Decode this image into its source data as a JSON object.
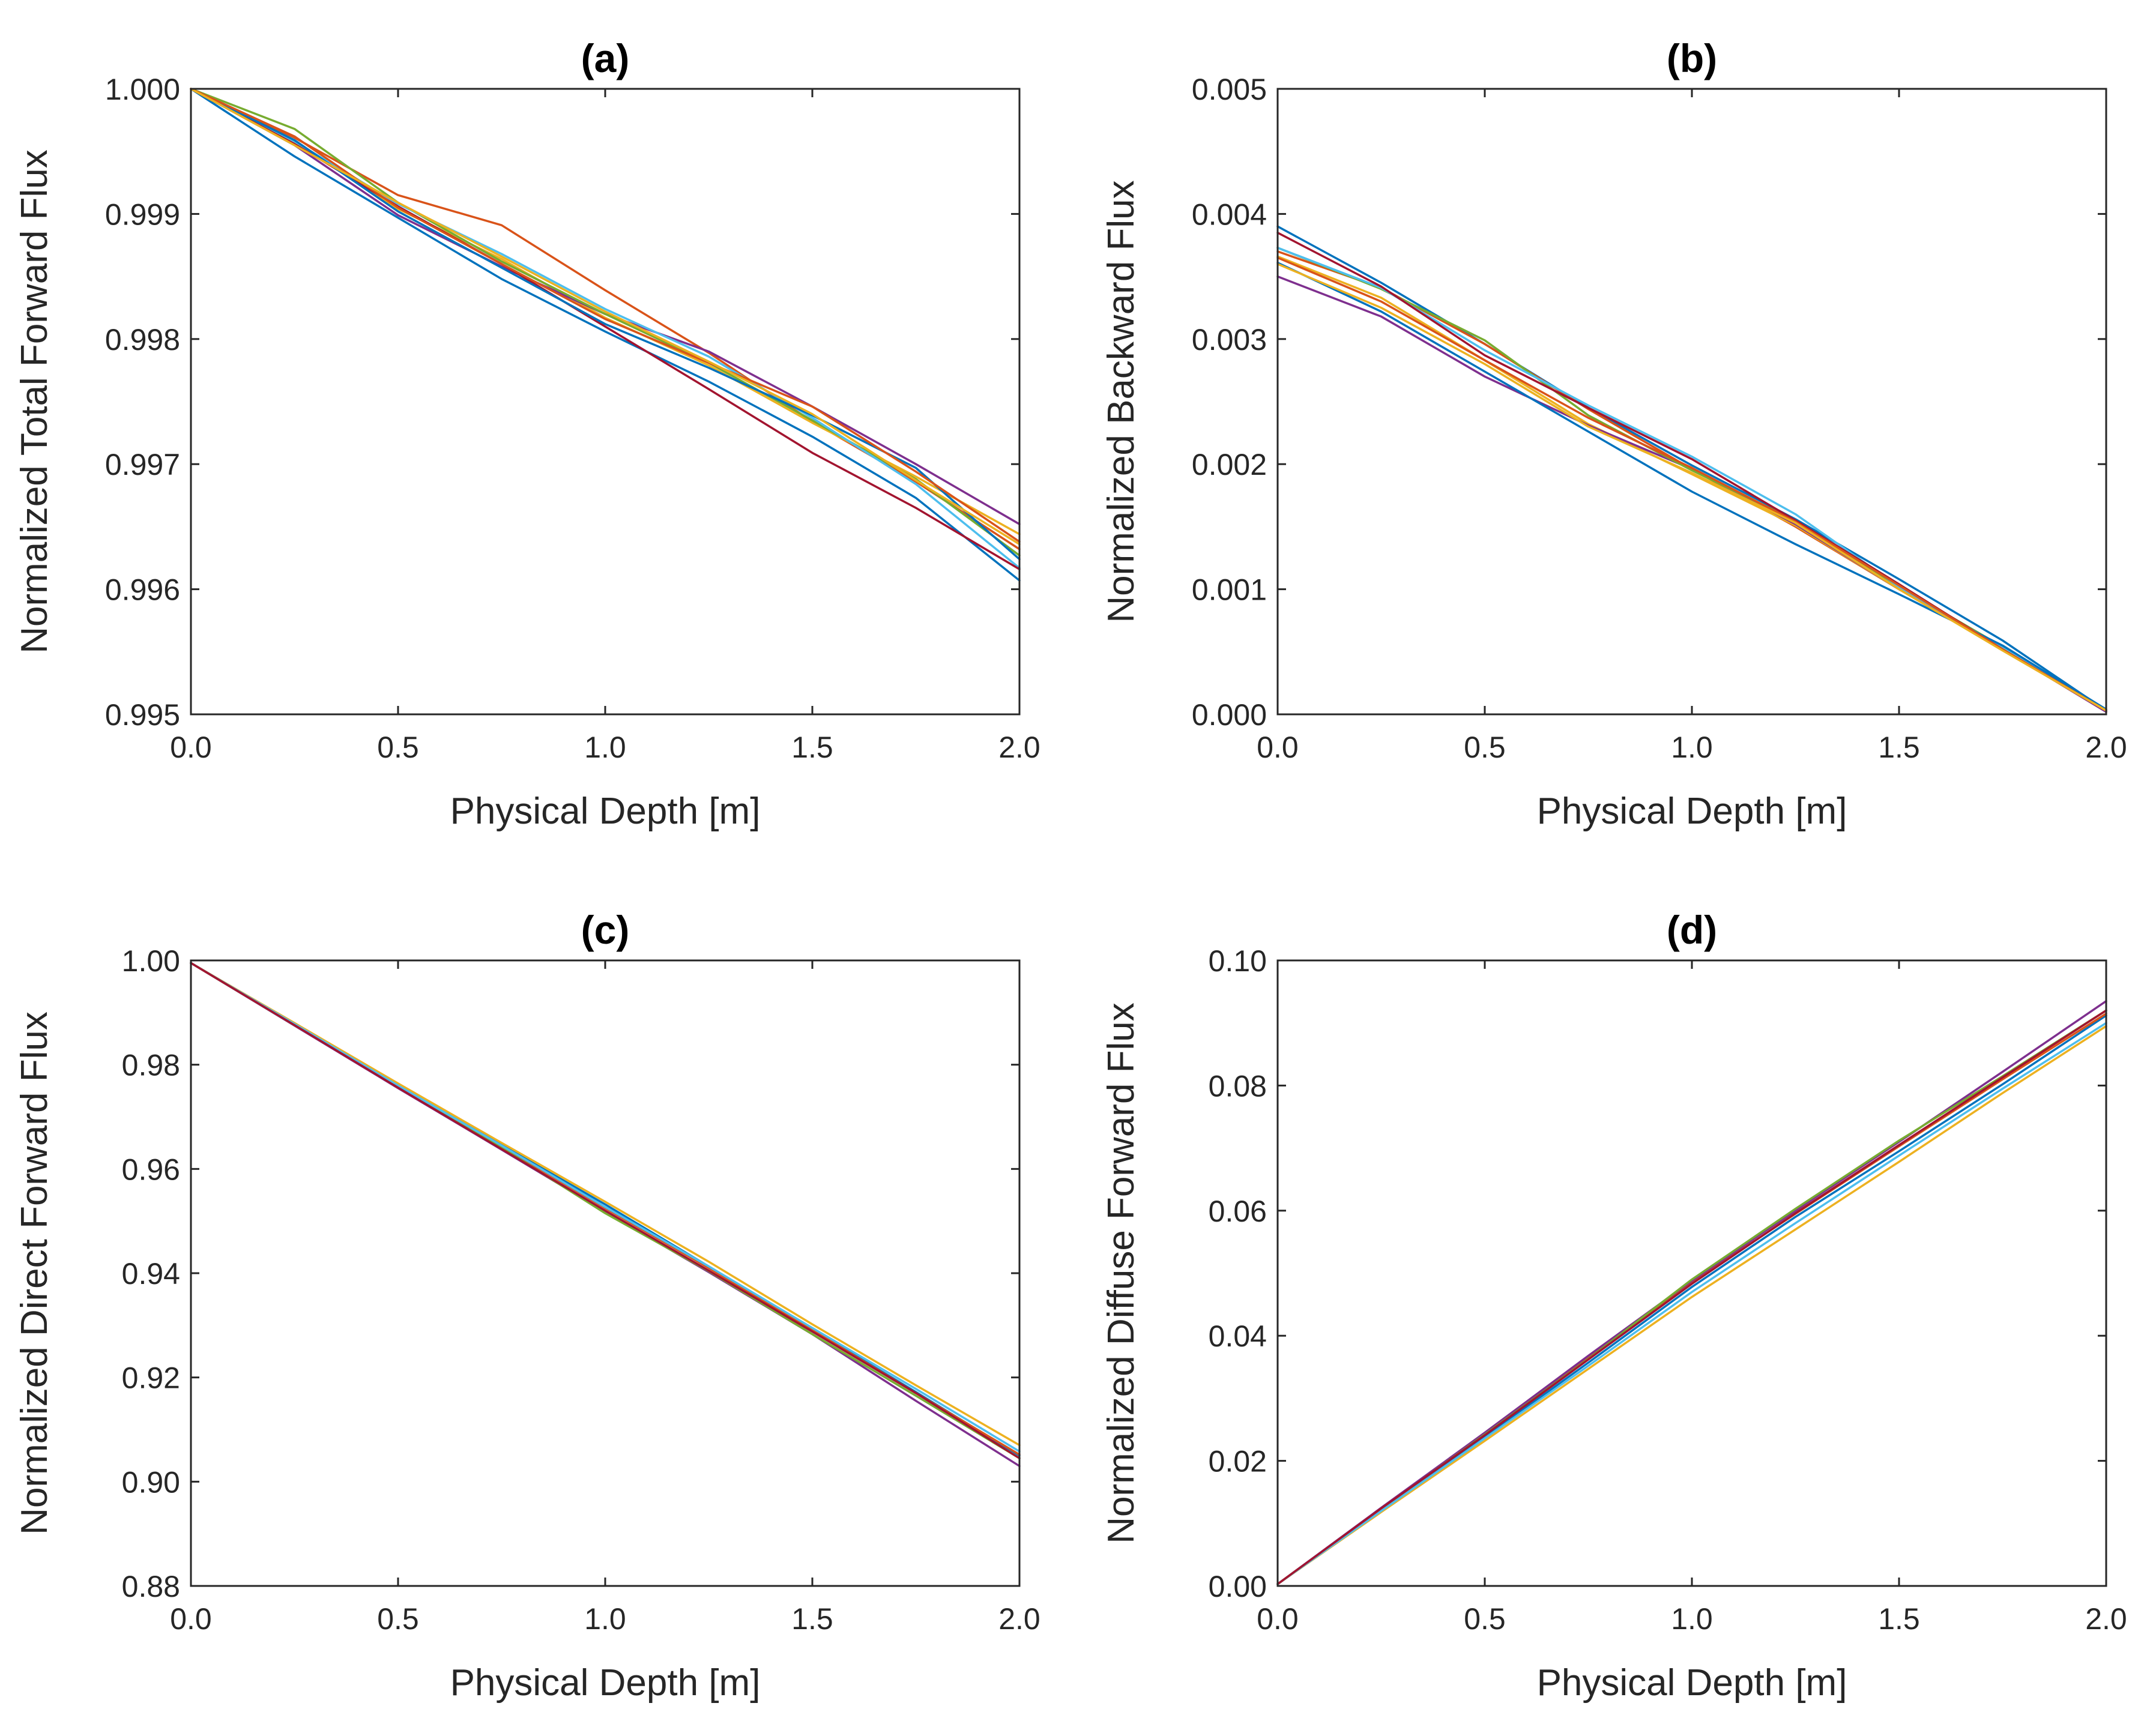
{
  "chart_data": [
    {
      "panel": "a",
      "type": "line",
      "title": "(a)",
      "xlabel": "Physical Depth [m]",
      "ylabel": "Normalized Total Forward Flux",
      "xlim": [
        0,
        2
      ],
      "ylim": [
        0.995,
        1.0
      ],
      "x_ticks": [
        "0.0",
        "0.5",
        "1.0",
        "1.5",
        "2.0"
      ],
      "y_ticks": [
        "0.995",
        "0.996",
        "0.997",
        "0.998",
        "0.999",
        "1.000"
      ],
      "grid": false,
      "x": [
        0,
        0.25,
        0.5,
        0.75,
        1.0,
        1.25,
        1.5,
        1.75,
        2.0
      ],
      "series": [
        {
          "color": "#0072BD",
          "values": [
            1.0,
            0.99946,
            0.99897,
            0.99848,
            0.99806,
            0.99766,
            0.99722,
            0.99673,
            0.99607
          ]
        },
        {
          "color": "#D95319",
          "values": [
            1.0,
            0.99961,
            0.99915,
            0.99891,
            0.99839,
            0.99789,
            0.99734,
            0.99686,
            0.99632
          ]
        },
        {
          "color": "#EDB120",
          "values": [
            1.0,
            0.99958,
            0.99904,
            0.99864,
            0.99817,
            0.99779,
            0.99733,
            0.9969,
            0.99644
          ]
        },
        {
          "color": "#7E2F8E",
          "values": [
            1.0,
            0.99955,
            0.99899,
            0.99858,
            0.9982,
            0.9979,
            0.99746,
            0.997,
            0.99652
          ]
        },
        {
          "color": "#77AC30",
          "values": [
            1.0,
            0.99968,
            0.99909,
            0.99862,
            0.9982,
            0.99781,
            0.99735,
            0.99688,
            0.99627
          ]
        },
        {
          "color": "#4DBEEE",
          "values": [
            1.0,
            0.99958,
            0.99908,
            0.99868,
            0.99824,
            0.99786,
            0.99737,
            0.99684,
            0.99617
          ]
        },
        {
          "color": "#A2142F",
          "values": [
            1.0,
            0.99956,
            0.99906,
            0.9986,
            0.9981,
            0.9976,
            0.99709,
            0.99665,
            0.99616
          ]
        },
        {
          "color": "#0072BD",
          "values": [
            1.0,
            0.99959,
            0.99902,
            0.99857,
            0.99812,
            0.99777,
            0.99739,
            0.99697,
            0.99624
          ]
        },
        {
          "color": "#D95319",
          "values": [
            1.0,
            0.99962,
            0.99905,
            0.9986,
            0.99816,
            0.99781,
            0.99746,
            0.99694,
            0.99638
          ]
        },
        {
          "color": "#EDB120",
          "values": [
            1.0,
            0.99955,
            0.99909,
            0.99866,
            0.99822,
            0.99782,
            0.9974,
            0.99687,
            0.99636
          ]
        }
      ]
    },
    {
      "panel": "b",
      "type": "line",
      "title": "(b)",
      "xlabel": "Physical Depth [m]",
      "ylabel": "Normalized Backward Flux",
      "xlim": [
        0,
        2
      ],
      "ylim": [
        0,
        0.005
      ],
      "x_ticks": [
        "0.0",
        "0.5",
        "1.0",
        "1.5",
        "2.0"
      ],
      "y_ticks": [
        "0.000",
        "0.001",
        "0.002",
        "0.003",
        "0.004",
        "0.005"
      ],
      "grid": false,
      "x": [
        0,
        0.25,
        0.5,
        0.75,
        1.0,
        1.25,
        1.5,
        1.75,
        2.0
      ],
      "series": [
        {
          "color": "#0072BD",
          "values": [
            0.0039,
            0.00345,
            0.00296,
            0.00245,
            0.00199,
            0.00156,
            0.00108,
            0.00059,
            3e-05
          ]
        },
        {
          "color": "#D95319",
          "values": [
            0.0037,
            0.00341,
            0.00296,
            0.00244,
            0.00196,
            0.0015,
            0.001,
            0.00052,
            2e-05
          ]
        },
        {
          "color": "#EDB120",
          "values": [
            0.00366,
            0.00333,
            0.00283,
            0.00232,
            0.00192,
            0.00151,
            0.001,
            0.00053,
            3e-05
          ]
        },
        {
          "color": "#7E2F8E",
          "values": [
            0.0035,
            0.00318,
            0.0027,
            0.00231,
            0.00196,
            0.00152,
            0.001,
            0.00052,
            2e-05
          ]
        },
        {
          "color": "#77AC30",
          "values": [
            0.00373,
            0.0034,
            0.00299,
            0.00239,
            0.00195,
            0.00155,
            0.00102,
            0.00054,
            3e-05
          ]
        },
        {
          "color": "#4DBEEE",
          "values": [
            0.00373,
            0.00341,
            0.00291,
            0.00247,
            0.00206,
            0.0016,
            0.00102,
            0.00053,
            3e-05
          ]
        },
        {
          "color": "#A2142F",
          "values": [
            0.00385,
            0.00342,
            0.00287,
            0.00245,
            0.00204,
            0.00155,
            0.00104,
            0.00052,
            3e-05
          ]
        },
        {
          "color": "#0072BD",
          "values": [
            0.00361,
            0.00322,
            0.00274,
            0.00226,
            0.00178,
            0.00136,
            0.00096,
            0.00055,
            4e-05
          ]
        },
        {
          "color": "#D95319",
          "values": [
            0.00365,
            0.0033,
            0.00283,
            0.00237,
            0.00197,
            0.00154,
            0.00103,
            0.00052,
            3e-05
          ]
        },
        {
          "color": "#EDB120",
          "values": [
            0.0036,
            0.00325,
            0.0028,
            0.0023,
            0.00193,
            0.00153,
            0.001,
            0.00051,
            3e-05
          ]
        }
      ]
    },
    {
      "panel": "c",
      "type": "line",
      "title": "(c)",
      "xlabel": "Physical Depth [m]",
      "ylabel": "Normalized Direct Forward Flux",
      "xlim": [
        0,
        2
      ],
      "ylim": [
        0.88,
        1.0
      ],
      "x_ticks": [
        "0.0",
        "0.5",
        "1.0",
        "1.5",
        "2.0"
      ],
      "y_ticks": [
        "0.88",
        "0.90",
        "0.92",
        "0.94",
        "0.96",
        "0.98",
        "1.00"
      ],
      "grid": false,
      "x": [
        0,
        0.25,
        0.5,
        0.75,
        1.0,
        1.25,
        1.5,
        1.75,
        2.0
      ],
      "series": [
        {
          "color": "#0072BD",
          "values": [
            0.9995,
            0.9877,
            0.9762,
            0.9646,
            0.9532,
            0.9413,
            0.9292,
            0.9172,
            0.905
          ]
        },
        {
          "color": "#D95319",
          "values": [
            0.9995,
            0.9878,
            0.976,
            0.9643,
            0.9525,
            0.941,
            0.9291,
            0.917,
            0.9052
          ]
        },
        {
          "color": "#EDB120",
          "values": [
            0.9995,
            0.988,
            0.9764,
            0.965,
            0.9537,
            0.9422,
            0.9302,
            0.9185,
            0.907
          ]
        },
        {
          "color": "#7E2F8E",
          "values": [
            0.9995,
            0.9875,
            0.9755,
            0.9637,
            0.9518,
            0.9402,
            0.9283,
            0.9155,
            0.903
          ]
        },
        {
          "color": "#77AC30",
          "values": [
            0.9995,
            0.9876,
            0.9758,
            0.9641,
            0.9515,
            0.9404,
            0.9283,
            0.9165,
            0.9045
          ]
        },
        {
          "color": "#4DBEEE",
          "values": [
            0.9995,
            0.9878,
            0.976,
            0.9645,
            0.9527,
            0.9413,
            0.9295,
            0.9178,
            0.9058
          ]
        },
        {
          "color": "#A2142F",
          "values": [
            0.9995,
            0.9876,
            0.9756,
            0.9638,
            0.952,
            0.9405,
            0.9288,
            0.917,
            0.9045
          ]
        }
      ]
    },
    {
      "panel": "d",
      "type": "line",
      "title": "(d)",
      "xlabel": "Physical Depth [m]",
      "ylabel": "Normalized Diffuse Forward Flux",
      "xlim": [
        0,
        2
      ],
      "ylim": [
        0,
        0.1
      ],
      "x_ticks": [
        "0.0",
        "0.5",
        "1.0",
        "1.5",
        "2.0"
      ],
      "y_ticks": [
        "0.00",
        "0.02",
        "0.04",
        "0.06",
        "0.08",
        "0.10"
      ],
      "grid": false,
      "x": [
        0,
        0.25,
        0.5,
        0.75,
        1.0,
        1.25,
        1.5,
        1.75,
        2.0
      ],
      "series": [
        {
          "color": "#0072BD",
          "values": [
            0.0003,
            0.0122,
            0.0238,
            0.0357,
            0.0478,
            0.059,
            0.0695,
            0.0802,
            0.0912
          ]
        },
        {
          "color": "#D95319",
          "values": [
            0.0003,
            0.0124,
            0.0243,
            0.0365,
            0.0485,
            0.0595,
            0.0703,
            0.081,
            0.0915
          ]
        },
        {
          "color": "#EDB120",
          "values": [
            0.0003,
            0.0118,
            0.0232,
            0.0347,
            0.0462,
            0.057,
            0.0678,
            0.0788,
            0.0895
          ]
        },
        {
          "color": "#7E2F8E",
          "values": [
            0.0003,
            0.0125,
            0.0245,
            0.0368,
            0.0488,
            0.06,
            0.071,
            0.0822,
            0.0935
          ]
        },
        {
          "color": "#77AC30",
          "values": [
            0.0003,
            0.0123,
            0.0242,
            0.0363,
            0.049,
            0.0603,
            0.0712,
            0.0815,
            0.092
          ]
        },
        {
          "color": "#4DBEEE",
          "values": [
            0.0003,
            0.012,
            0.0236,
            0.0352,
            0.047,
            0.058,
            0.0688,
            0.0795,
            0.09
          ]
        },
        {
          "color": "#A2142F",
          "values": [
            0.0003,
            0.0124,
            0.0241,
            0.0362,
            0.0483,
            0.0596,
            0.0705,
            0.0813,
            0.092
          ]
        }
      ]
    }
  ]
}
